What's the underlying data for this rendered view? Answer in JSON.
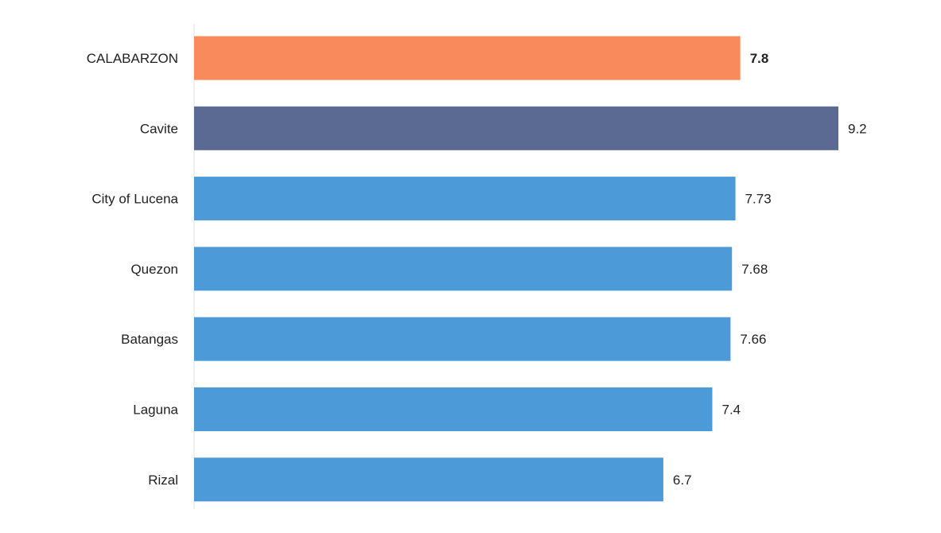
{
  "chart_data": {
    "type": "bar",
    "orientation": "horizontal",
    "categories": [
      "CALABARZON",
      "Cavite",
      "City of Lucena",
      "Quezon",
      "Batangas",
      "Laguna",
      "Rizal"
    ],
    "values": [
      7.8,
      9.2,
      7.73,
      7.68,
      7.66,
      7.4,
      6.7
    ],
    "value_labels": [
      "7.8",
      "9.2",
      "7.73",
      "7.68",
      "7.66",
      "7.4",
      "6.7"
    ],
    "highlight": [
      "region",
      "province",
      "city",
      "province",
      "province",
      "province",
      "province"
    ],
    "colors": {
      "region": "#f88a5b",
      "province_top": "#5a6a93",
      "default": "#4d9ad9"
    },
    "bar_colors": [
      "#f88a5b",
      "#5a6a93",
      "#4d9ad9",
      "#4d9ad9",
      "#4d9ad9",
      "#4d9ad9",
      "#4d9ad9"
    ],
    "bold_value_index": 0,
    "xlim": [
      0,
      9.2
    ],
    "grid": false,
    "legend": "none"
  }
}
